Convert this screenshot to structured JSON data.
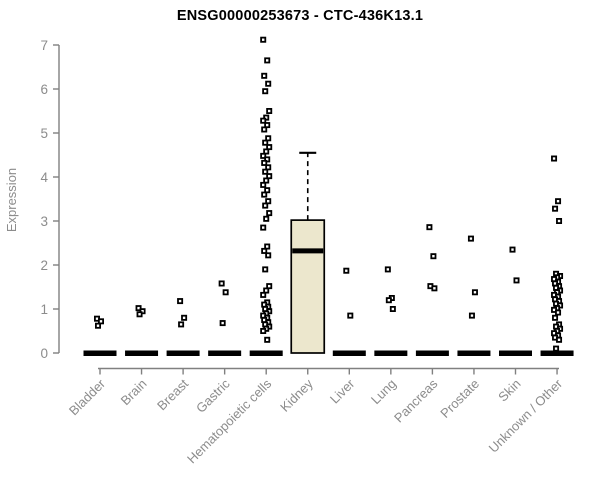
{
  "chart_data": {
    "type": "boxplot",
    "title": "ENSG00000253673 - CTC-436K13.1",
    "ylabel": "Expression",
    "ylim": [
      0,
      7
    ],
    "yticks": [
      0,
      1,
      2,
      3,
      4,
      5,
      6,
      7
    ],
    "grid": false,
    "legend": "none",
    "colors": {
      "box_fill": "#ECE7CD",
      "box_border": "#000000",
      "point_color": "#000000",
      "axis_line": "#808080",
      "axis_text": "#8c8c8c",
      "title_color": "#000000",
      "background": "#ffffff"
    },
    "categories": [
      "Bladder",
      "Brain",
      "Breast",
      "Gastric",
      "Hematopoietic cells",
      "Kidney",
      "Liver",
      "Lung",
      "Pancreas",
      "Prostate",
      "Skin",
      "Unknown / Other"
    ],
    "groups": [
      {
        "name": "Bladder",
        "flat_zero_box": true,
        "points": [
          0.78,
          0.72,
          0.62
        ]
      },
      {
        "name": "Brain",
        "flat_zero_box": true,
        "points": [
          1.02,
          0.95,
          0.88
        ]
      },
      {
        "name": "Breast",
        "flat_zero_box": true,
        "points": [
          1.18,
          0.8,
          0.65
        ]
      },
      {
        "name": "Gastric",
        "flat_zero_box": true,
        "points": [
          1.58,
          1.38,
          0.68
        ]
      },
      {
        "name": "Hematopoietic cells",
        "flat_zero_box": true,
        "points": [
          7.12,
          6.65,
          6.3,
          6.12,
          5.95,
          5.5,
          5.35,
          5.28,
          5.18,
          5.08,
          4.88,
          4.78,
          4.68,
          4.58,
          4.48,
          4.4,
          4.32,
          4.22,
          4.12,
          4.02,
          3.92,
          3.82,
          3.7,
          3.6,
          3.45,
          3.35,
          3.18,
          3.05,
          2.85,
          2.42,
          2.32,
          2.22,
          1.9,
          1.52,
          1.42,
          1.32,
          1.15,
          1.1,
          1.05,
          1.0,
          0.95,
          0.9,
          0.85,
          0.8,
          0.75,
          0.7,
          0.65,
          0.6,
          0.55,
          0.5,
          0.3
        ]
      },
      {
        "name": "Kidney",
        "flat_zero_box": false,
        "box": {
          "q1": 0,
          "median": 2.32,
          "q3": 3.02,
          "whisker_low": 0,
          "whisker_high": 4.55
        },
        "points": []
      },
      {
        "name": "Liver",
        "flat_zero_box": true,
        "points": [
          1.87,
          0.85
        ]
      },
      {
        "name": "Lung",
        "flat_zero_box": true,
        "points": [
          1.9,
          1.25,
          1.2,
          1.0
        ]
      },
      {
        "name": "Pancreas",
        "flat_zero_box": true,
        "points": [
          2.86,
          2.2,
          1.52,
          1.47
        ]
      },
      {
        "name": "Prostate",
        "flat_zero_box": true,
        "points": [
          2.6,
          1.38,
          0.85
        ]
      },
      {
        "name": "Skin",
        "flat_zero_box": true,
        "points": [
          2.35,
          1.65
        ]
      },
      {
        "name": "Unknown / Other",
        "flat_zero_box": true,
        "points": [
          4.42,
          3.45,
          3.28,
          3.0,
          1.8,
          1.75,
          1.72,
          1.68,
          1.62,
          1.58,
          1.52,
          1.48,
          1.42,
          1.38,
          1.32,
          1.28,
          1.22,
          1.18,
          1.12,
          1.08,
          1.02,
          0.98,
          0.92,
          0.8,
          0.65,
          0.6,
          0.55,
          0.5,
          0.45,
          0.4,
          0.35,
          0.3,
          0.1
        ]
      }
    ]
  }
}
